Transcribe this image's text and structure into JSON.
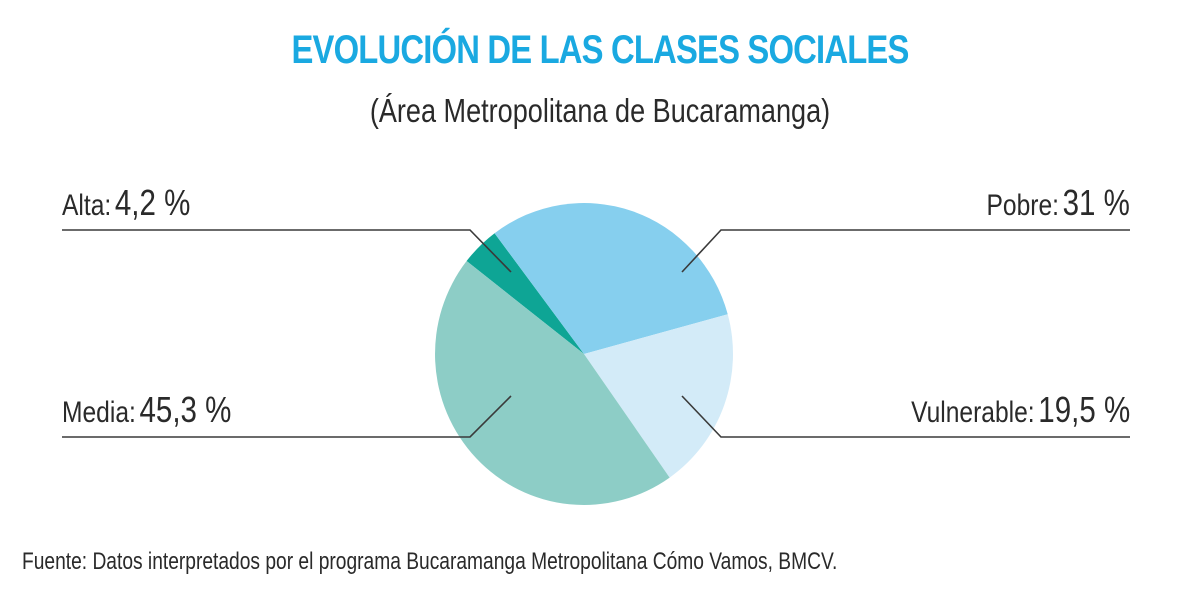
{
  "header": {
    "title": "EVOLUCIÓN DE LAS CLASES SOCIALES",
    "subtitle": "(Área Metropolitana de Bucaramanga)"
  },
  "labels": {
    "alta": {
      "name": "Alta:",
      "value": "4,2 %"
    },
    "pobre": {
      "name": "Pobre:",
      "value": "31 %"
    },
    "media": {
      "name": "Media:",
      "value": "45,3 %"
    },
    "vulnerable": {
      "name": "Vulnerable:",
      "value": "19,5 %"
    }
  },
  "footer": {
    "source": "Fuente: Datos interpretados por el programa Bucaramanga Metropolitana Cómo Vamos, BMCV."
  },
  "colors": {
    "title": "#1aa9e1",
    "pobre": "#86cfee",
    "vulnerable": "#d3ebf8",
    "media": "#8dcdc6",
    "alta": "#0ea595",
    "leader_lines": "#3a3a3a"
  },
  "chart_data": {
    "type": "pie",
    "title": "EVOLUCIÓN DE LAS CLASES SOCIALES",
    "subtitle": "(Área Metropolitana de Bucaramanga)",
    "categories": [
      "Alta",
      "Pobre",
      "Vulnerable",
      "Media"
    ],
    "values": [
      4.2,
      31,
      19.5,
      45.3
    ],
    "unit": "%",
    "legend_position": "callout labels with leader lines",
    "source": "Fuente: Datos interpretados por el programa Bucaramanga Metropolitana Cómo Vamos, BMCV."
  }
}
